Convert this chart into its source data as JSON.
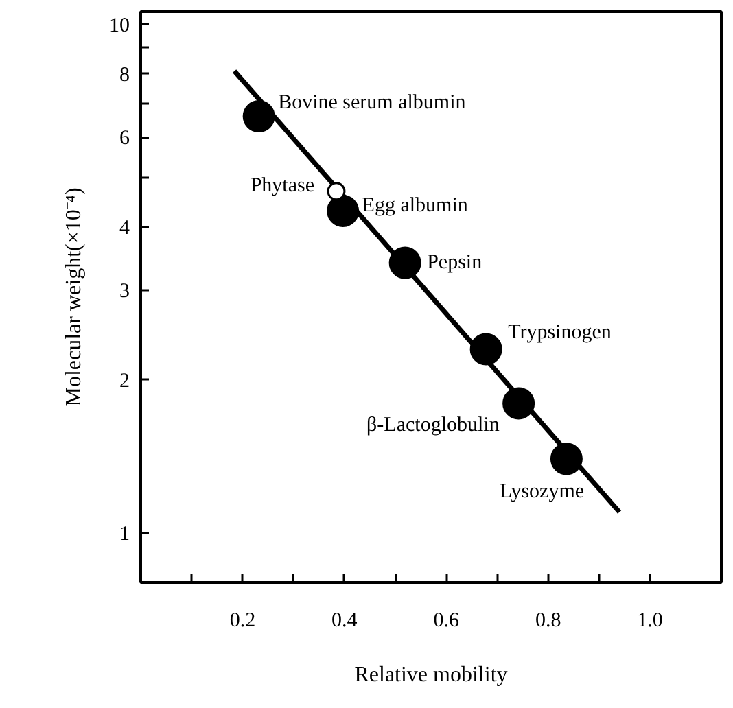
{
  "chart_data": {
    "type": "scatter",
    "xlabel": "Relative mobility",
    "ylabel": "Molecular weight(×10⁻⁴)",
    "log": "y",
    "marker": "circle",
    "grid": false,
    "xlim": [
      0,
      1.14
    ],
    "ylim": [
      0.8,
      10.6
    ],
    "xticks": [
      {
        "value": 0.1,
        "label": null
      },
      0.2,
      {
        "value": 0.3,
        "label": null
      },
      0.4,
      {
        "value": 0.5,
        "label": null
      },
      0.6,
      {
        "value": 0.7,
        "label": null
      },
      0.8,
      {
        "value": 0.9,
        "label": null
      },
      "1.0"
    ],
    "yticks": [
      1,
      2,
      3,
      4,
      {
        "value": 5,
        "label": null
      },
      6,
      {
        "value": 7,
        "label": null
      },
      8,
      {
        "value": 9,
        "label": null
      },
      10
    ],
    "series": [
      {
        "color": "#000000",
        "x": [
          0.232,
          0.397,
          0.519,
          0.678,
          0.742,
          0.836
        ],
        "values": [
          6.6,
          4.3,
          3.4,
          2.3,
          1.8,
          1.4
        ]
      },
      {
        "color": "#ffffff",
        "x": [
          0.384
        ],
        "values": [
          4.7
        ]
      },
      {
        "type": "line",
        "marker": "none",
        "color": "#000000",
        "x": [
          0.184,
          0.94
        ],
        "values": [
          8.1,
          1.1
        ]
      }
    ],
    "annotations": [
      {
        "text": "Bovine serum albumin",
        "x": 0.232,
        "y": 6.6
      },
      {
        "text": "Phytase",
        "x": 0.384,
        "y": 4.7
      },
      {
        "text": "Egg albumin",
        "x": 0.397,
        "y": 4.3
      },
      {
        "text": "Pepsin",
        "x": 0.519,
        "y": 3.4
      },
      {
        "text": "Trypsinogen",
        "x": 0.678,
        "y": 2.3
      },
      {
        "text": "β-Lactoglobulin",
        "x": 0.742,
        "y": 1.8
      },
      {
        "text": "Lysozyme",
        "x": 0.836,
        "y": 1.4
      }
    ]
  }
}
